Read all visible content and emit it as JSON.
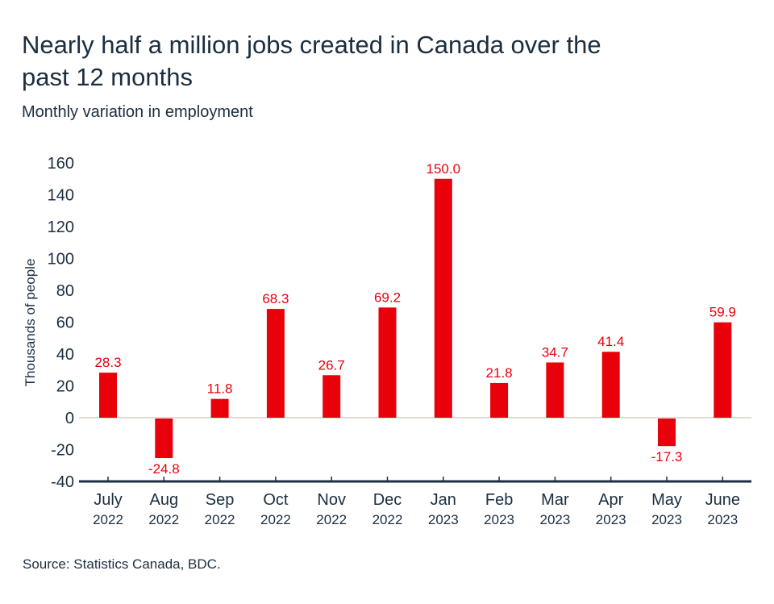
{
  "chart_data": {
    "type": "bar",
    "title": "Nearly half a million jobs created in Canada over the past 12 months",
    "subtitle": "Monthly variation in employment",
    "xlabel": "",
    "ylabel": "Thousands of people",
    "ylim": [
      -40,
      160
    ],
    "yticks": [
      "160",
      "140",
      "120",
      "100",
      "80",
      "60",
      "40",
      "20",
      "0",
      "-20",
      "-40"
    ],
    "ytick_values": [
      160,
      140,
      120,
      100,
      80,
      60,
      40,
      20,
      0,
      -20,
      -40
    ],
    "grid": false,
    "categories": [
      {
        "month": "July",
        "year": "2022"
      },
      {
        "month": "Aug",
        "year": "2022"
      },
      {
        "month": "Sep",
        "year": "2022"
      },
      {
        "month": "Oct",
        "year": "2022"
      },
      {
        "month": "Nov",
        "year": "2022"
      },
      {
        "month": "Dec",
        "year": "2022"
      },
      {
        "month": "Jan",
        "year": "2023"
      },
      {
        "month": "Feb",
        "year": "2023"
      },
      {
        "month": "Mar",
        "year": "2023"
      },
      {
        "month": "Apr",
        "year": "2023"
      },
      {
        "month": "May",
        "year": "2023"
      },
      {
        "month": "June",
        "year": "2023"
      }
    ],
    "values": [
      28.3,
      -24.8,
      11.8,
      68.3,
      26.7,
      69.2,
      150.0,
      21.8,
      34.7,
      41.4,
      -17.3,
      59.9
    ],
    "labels": [
      "28.3",
      "-24.8",
      "11.8",
      "68.3",
      "26.7",
      "69.2",
      "150.0",
      "21.8",
      "34.7",
      "41.4",
      "-17.3",
      "59.9"
    ],
    "source": "Source: Statistics Canada, BDC."
  },
  "colors": {
    "bar": "#e8000b",
    "label": "#e8000b",
    "text": "#1b2e40",
    "axis": "#1b2e40",
    "zero_line": "#d9cfcb"
  }
}
